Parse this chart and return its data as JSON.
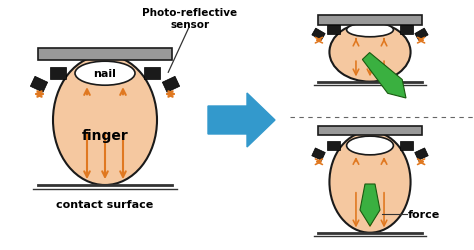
{
  "bg_color": "#ffffff",
  "finger_color": "#f5c8a0",
  "finger_edge": "#1a1a1a",
  "nail_color": "#ffffff",
  "nail_edge": "#1a1a1a",
  "plate_color": "#888888",
  "plate_edge": "#1a1a1a",
  "sensor_color": "#1a1a1a",
  "arrow_color": "#e07820",
  "green_arrow": "#3ab040",
  "blue_arrow": "#3399cc",
  "surface_color": "#333333",
  "label_nail": "nail",
  "label_finger": "finger",
  "label_contact": "contact surface",
  "label_force": "force",
  "label_sensor": "Photo-reflective\nsensor"
}
